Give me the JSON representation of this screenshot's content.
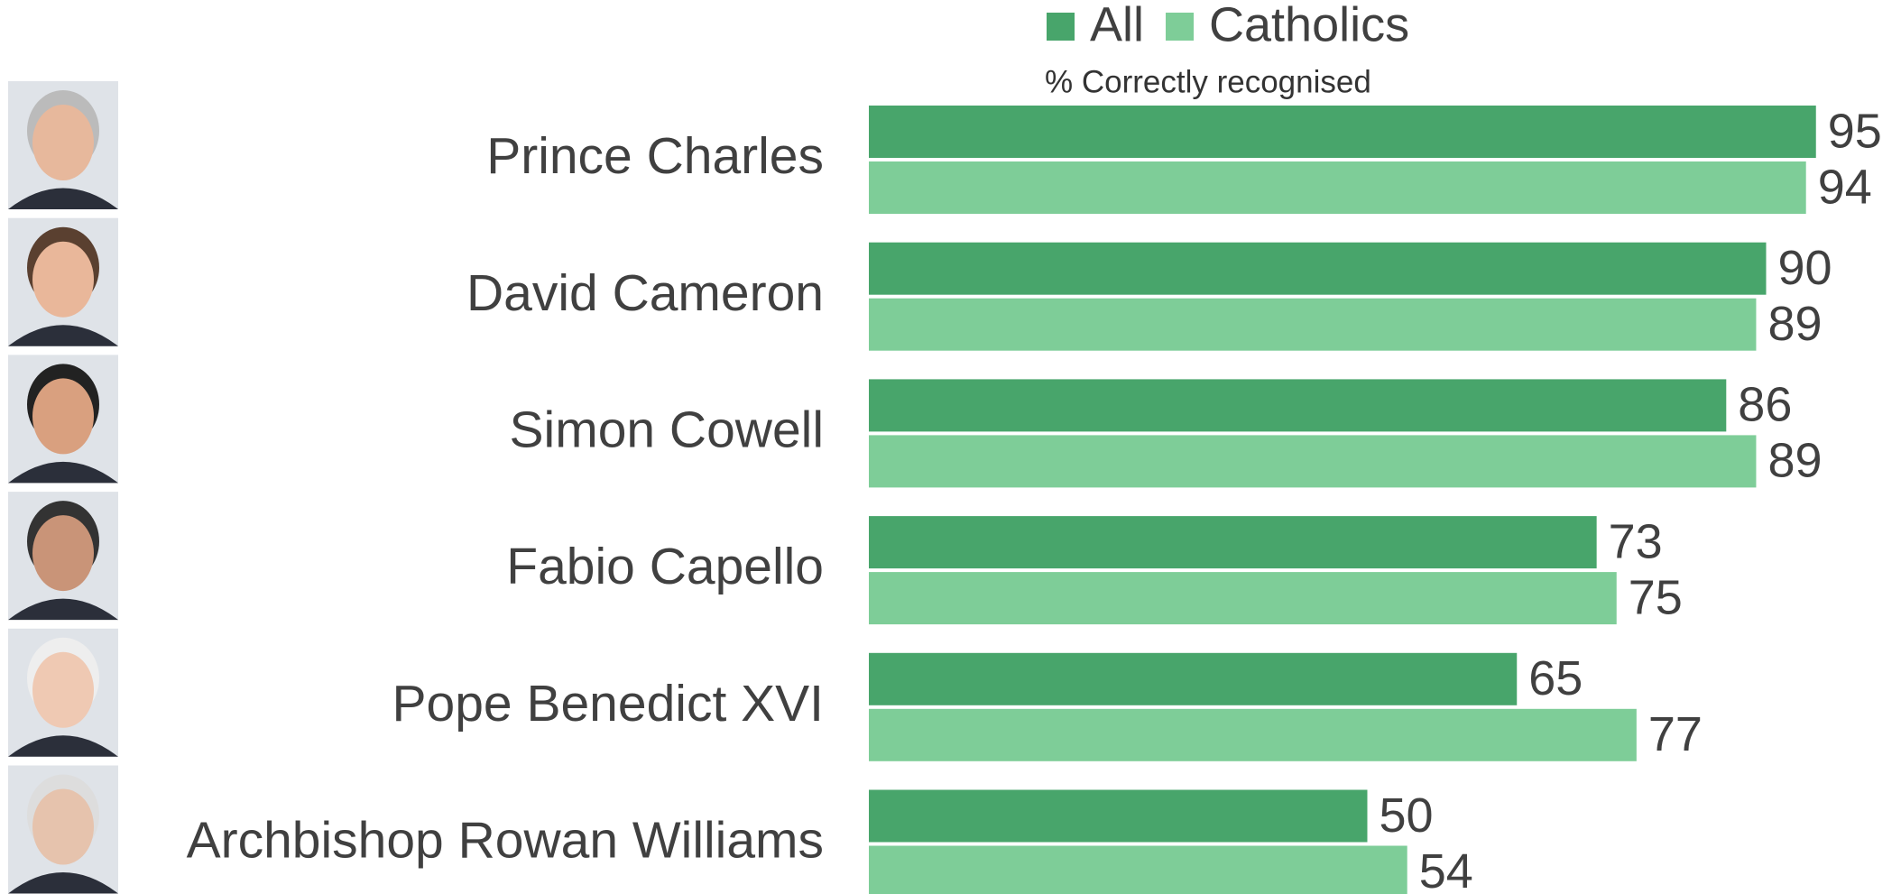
{
  "chart_data": {
    "type": "bar",
    "orientation": "horizontal",
    "subtitle": "% Correctly recognised",
    "categories": [
      "Prince Charles",
      "David Cameron",
      "Simon Cowell",
      "Fabio Capello",
      "Pope Benedict XVI",
      "Archbishop Rowan Williams"
    ],
    "series": [
      {
        "name": "All",
        "color": "#48a56b",
        "values": [
          95,
          90,
          86,
          73,
          65,
          50
        ]
      },
      {
        "name": "Catholics",
        "color": "#7ecd98",
        "values": [
          94,
          89,
          89,
          75,
          77,
          54
        ]
      }
    ],
    "legend": "top"
  }
}
